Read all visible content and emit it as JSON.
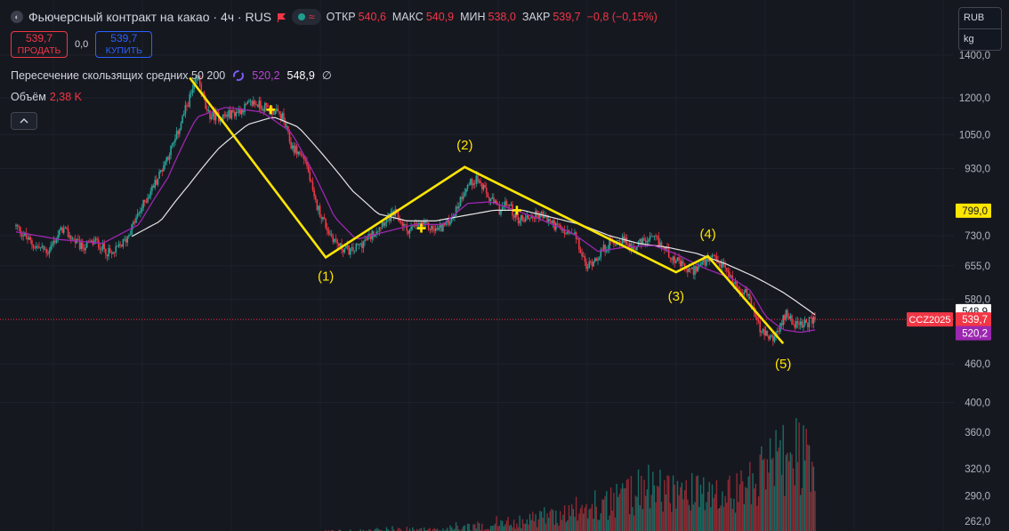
{
  "header": {
    "title": "Фьючерсный контракт на какао · 4ч · RUS",
    "ohlc": [
      {
        "label": "ОТКР",
        "value": "540,6"
      },
      {
        "label": "МАКС",
        "value": "540,9"
      },
      {
        "label": "МИН",
        "value": "538,0"
      },
      {
        "label": "ЗАКР",
        "value": "539,7"
      }
    ],
    "change": "−0,8 (−0,15%)"
  },
  "trade": {
    "sell_price": "539,7",
    "sell_label": "ПРОДАТЬ",
    "spread": "0,0",
    "buy_price": "539,7",
    "buy_label": "КУПИТЬ"
  },
  "indicator": {
    "name": "Пересечение скользящих средних 50 200",
    "ma_fast_value": "520,2",
    "ma_slow_value": "548,9",
    "empty_symbol": "∅"
  },
  "volume": {
    "label": "Объём",
    "value": "2,38 K"
  },
  "units": {
    "currency": "RUB",
    "unit": "kg"
  },
  "colors": {
    "background": "#161820",
    "up": "#26a69a",
    "down": "#f23645",
    "ma_fast": "#9c27b0",
    "ma_slow": "#e0e0e0",
    "wave": "#ffe600"
  },
  "chart_data": {
    "type": "candlestick",
    "scale": "log",
    "y_ticks": [
      "1400,0",
      "1200,0",
      "1050,0",
      "930,0",
      "730,0",
      "655,0",
      "580,0",
      "460,0",
      "400,0"
    ],
    "y_tick_values": [
      1400,
      1200,
      1050,
      930,
      730,
      655,
      580,
      460,
      400
    ],
    "volume_ticks": [
      "360,0",
      "320,0",
      "290,0",
      "262,0"
    ],
    "volume_tick_values": [
      360,
      320,
      290,
      262
    ],
    "price_anchors": [
      [
        0,
        755
      ],
      [
        12,
        705
      ],
      [
        22,
        690
      ],
      [
        32,
        748
      ],
      [
        45,
        700
      ],
      [
        55,
        715
      ],
      [
        66,
        680
      ],
      [
        76,
        720
      ],
      [
        86,
        800
      ],
      [
        98,
        900
      ],
      [
        110,
        1030
      ],
      [
        120,
        1200
      ],
      [
        126,
        1290
      ],
      [
        132,
        1130
      ],
      [
        142,
        1120
      ],
      [
        152,
        1140
      ],
      [
        164,
        1180
      ],
      [
        176,
        1150
      ],
      [
        184,
        1120
      ],
      [
        190,
        1010
      ],
      [
        200,
        960
      ],
      [
        206,
        830
      ],
      [
        216,
        740
      ],
      [
        224,
        700
      ],
      [
        232,
        690
      ],
      [
        244,
        725
      ],
      [
        254,
        770
      ],
      [
        262,
        790
      ],
      [
        270,
        745
      ],
      [
        280,
        760
      ],
      [
        290,
        745
      ],
      [
        298,
        765
      ],
      [
        304,
        800
      ],
      [
        310,
        865
      ],
      [
        318,
        900
      ],
      [
        326,
        840
      ],
      [
        334,
        800
      ],
      [
        340,
        820
      ],
      [
        346,
        775
      ],
      [
        354,
        780
      ],
      [
        362,
        790
      ],
      [
        370,
        765
      ],
      [
        378,
        740
      ],
      [
        386,
        730
      ],
      [
        394,
        650
      ],
      [
        402,
        680
      ],
      [
        410,
        710
      ],
      [
        418,
        720
      ],
      [
        426,
        700
      ],
      [
        434,
        715
      ],
      [
        442,
        720
      ],
      [
        450,
        690
      ],
      [
        458,
        660
      ],
      [
        466,
        640
      ],
      [
        474,
        660
      ],
      [
        482,
        670
      ],
      [
        490,
        650
      ],
      [
        496,
        615
      ],
      [
        506,
        588
      ],
      [
        514,
        520
      ],
      [
        520,
        505
      ],
      [
        526,
        510
      ],
      [
        532,
        555
      ],
      [
        540,
        525
      ],
      [
        548,
        535
      ],
      [
        552,
        540
      ]
    ],
    "ma_fast_anchors": [
      [
        0,
        740
      ],
      [
        30,
        720
      ],
      [
        60,
        710
      ],
      [
        85,
        760
      ],
      [
        105,
        900
      ],
      [
        125,
        1120
      ],
      [
        145,
        1160
      ],
      [
        170,
        1140
      ],
      [
        190,
        1060
      ],
      [
        205,
        920
      ],
      [
        220,
        780
      ],
      [
        235,
        720
      ],
      [
        255,
        740
      ],
      [
        275,
        760
      ],
      [
        295,
        760
      ],
      [
        312,
        820
      ],
      [
        328,
        825
      ],
      [
        345,
        800
      ],
      [
        365,
        770
      ],
      [
        385,
        735
      ],
      [
        402,
        690
      ],
      [
        420,
        700
      ],
      [
        440,
        705
      ],
      [
        455,
        685
      ],
      [
        475,
        650
      ],
      [
        495,
        625
      ],
      [
        507,
        600
      ],
      [
        518,
        545
      ],
      [
        530,
        520
      ],
      [
        542,
        515
      ],
      [
        552,
        520
      ]
    ],
    "ma_slow_anchors": [
      [
        80,
        728
      ],
      [
        100,
        770
      ],
      [
        120,
        880
      ],
      [
        140,
        1000
      ],
      [
        160,
        1090
      ],
      [
        178,
        1120
      ],
      [
        195,
        1080
      ],
      [
        215,
        960
      ],
      [
        232,
        860
      ],
      [
        250,
        790
      ],
      [
        270,
        770
      ],
      [
        290,
        770
      ],
      [
        310,
        785
      ],
      [
        330,
        800
      ],
      [
        350,
        800
      ],
      [
        370,
        780
      ],
      [
        390,
        760
      ],
      [
        410,
        730
      ],
      [
        430,
        710
      ],
      [
        450,
        700
      ],
      [
        470,
        685
      ],
      [
        490,
        660
      ],
      [
        510,
        630
      ],
      [
        530,
        595
      ],
      [
        552,
        549
      ]
    ],
    "volume_envelope": [
      [
        0,
        246
      ],
      [
        180,
        246
      ],
      [
        215,
        252
      ],
      [
        290,
        255
      ],
      [
        330,
        262
      ],
      [
        400,
        285
      ],
      [
        440,
        320
      ],
      [
        490,
        300
      ],
      [
        520,
        345
      ],
      [
        540,
        370
      ],
      [
        552,
        340
      ]
    ],
    "wave_points": [
      [
        120,
        1290
      ],
      [
        214,
        675
      ],
      [
        310,
        935
      ],
      [
        456,
        640
      ],
      [
        478,
        678
      ],
      [
        530,
        495
      ]
    ],
    "wave_labels": [
      "(1)",
      "(2)",
      "(3)",
      "(4)",
      "(5)"
    ],
    "cross_markers": [
      [
        176,
        1150
      ],
      [
        280,
        750
      ],
      [
        346,
        800
      ]
    ],
    "price_labels": [
      {
        "text": "799,0",
        "price": 799,
        "style": "yellow"
      },
      {
        "text": "548,9",
        "price": 548.9,
        "style": "white"
      },
      {
        "text": "539,7",
        "price": 539.7,
        "style": "red"
      },
      {
        "text": "520,2",
        "price": 520.2,
        "style": "purple"
      }
    ],
    "symbol_label": "CCZ2025",
    "last_price": 539.7
  }
}
